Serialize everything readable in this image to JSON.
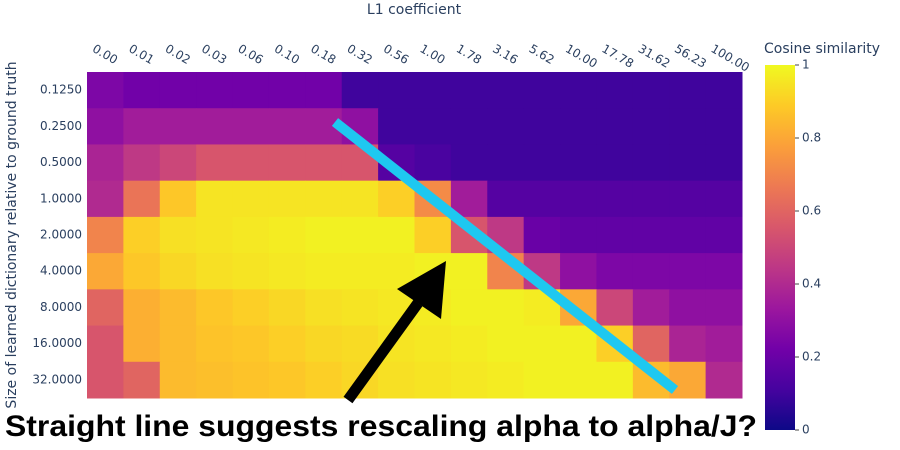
{
  "chart_data": {
    "type": "heatmap",
    "x_title": "L1 coefficient",
    "y_title": "Size of learned dictionary relative to ground truth",
    "x": [
      "0.00",
      "0.01",
      "0.02",
      "0.03",
      "0.06",
      "0.10",
      "0.18",
      "0.32",
      "0.56",
      "1.00",
      "1.78",
      "3.16",
      "5.62",
      "10.00",
      "17.78",
      "31.62",
      "56.23",
      "100.00"
    ],
    "y": [
      "0.1250",
      "0.2500",
      "0.5000",
      "1.0000",
      "2.0000",
      "4.0000",
      "8.0000",
      "16.0000",
      "32.0000"
    ],
    "z": [
      [
        0.25,
        0.22,
        0.22,
        0.22,
        0.22,
        0.22,
        0.22,
        0.1,
        0.1,
        0.1,
        0.1,
        0.1,
        0.1,
        0.1,
        0.1,
        0.1,
        0.1,
        0.1
      ],
      [
        0.3,
        0.35,
        0.35,
        0.35,
        0.35,
        0.35,
        0.35,
        0.3,
        0.1,
        0.1,
        0.1,
        0.1,
        0.1,
        0.1,
        0.1,
        0.1,
        0.1,
        0.1
      ],
      [
        0.38,
        0.45,
        0.5,
        0.55,
        0.55,
        0.55,
        0.55,
        0.55,
        0.15,
        0.12,
        0.1,
        0.1,
        0.1,
        0.1,
        0.1,
        0.1,
        0.1,
        0.1
      ],
      [
        0.4,
        0.65,
        0.88,
        0.95,
        0.95,
        0.95,
        0.95,
        0.95,
        0.9,
        0.72,
        0.35,
        0.15,
        0.15,
        0.15,
        0.15,
        0.15,
        0.15,
        0.15
      ],
      [
        0.7,
        0.9,
        0.94,
        0.95,
        0.96,
        0.97,
        0.98,
        0.98,
        0.98,
        0.9,
        0.55,
        0.45,
        0.2,
        0.18,
        0.18,
        0.18,
        0.18,
        0.18
      ],
      [
        0.8,
        0.88,
        0.92,
        0.94,
        0.95,
        0.96,
        0.97,
        0.97,
        0.97,
        0.98,
        0.98,
        0.7,
        0.45,
        0.3,
        0.25,
        0.25,
        0.25,
        0.25
      ],
      [
        0.6,
        0.82,
        0.85,
        0.88,
        0.9,
        0.92,
        0.94,
        0.95,
        0.96,
        0.97,
        0.98,
        0.98,
        0.97,
        0.8,
        0.5,
        0.35,
        0.3,
        0.3
      ],
      [
        0.55,
        0.82,
        0.85,
        0.87,
        0.88,
        0.9,
        0.92,
        0.93,
        0.95,
        0.96,
        0.97,
        0.98,
        0.98,
        0.98,
        0.9,
        0.6,
        0.38,
        0.35
      ],
      [
        0.55,
        0.6,
        0.85,
        0.86,
        0.87,
        0.88,
        0.9,
        0.92,
        0.94,
        0.95,
        0.96,
        0.97,
        0.98,
        0.98,
        0.98,
        0.85,
        0.8,
        0.4
      ]
    ],
    "colorscale": [
      "#0d0887",
      "#46039f",
      "#7201a8",
      "#9c179e",
      "#bd3786",
      "#d8576b",
      "#ed7953",
      "#fb9f3a",
      "#fdca26",
      "#f0f921"
    ],
    "colorbar_title": "Cosine similarity",
    "zlim": [
      0,
      1
    ],
    "zticks": [
      0,
      0.2,
      0.4,
      0.6,
      0.8,
      1
    ],
    "annotation": "Straight line suggests rescaling alpha to alpha/J?"
  }
}
